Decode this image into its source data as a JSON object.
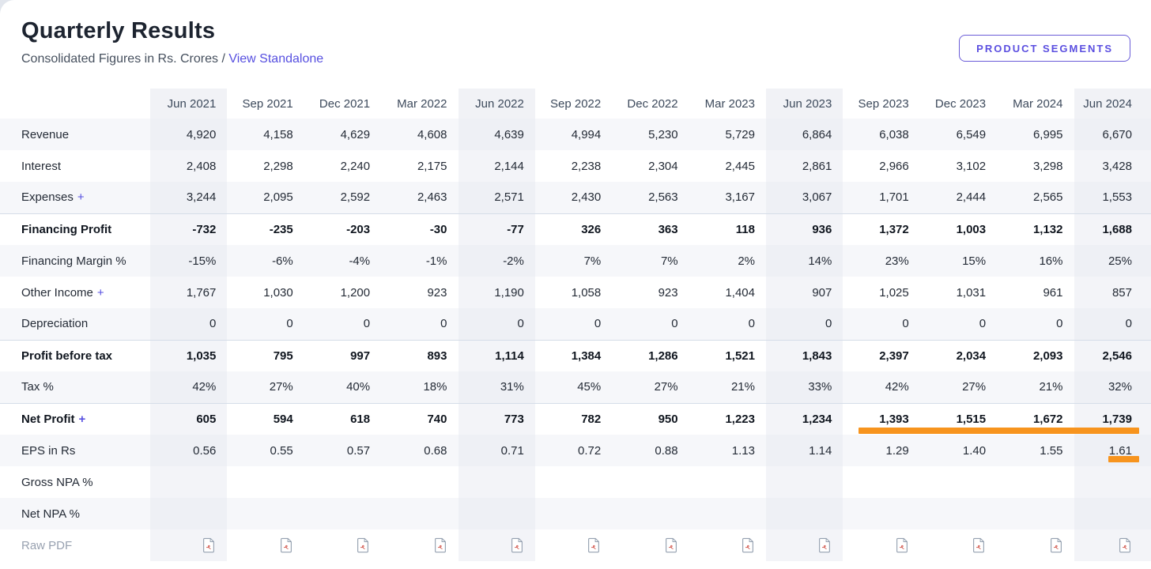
{
  "header": {
    "title": "Quarterly Results",
    "subtitle_prefix": "Consolidated Figures in Rs. Crores /",
    "link_label": "View Standalone",
    "button_label": "PRODUCT SEGMENTS"
  },
  "colors": {
    "accent_purple": "#564fe0",
    "highlight_marker": "#f7941e"
  },
  "table": {
    "columns": [
      "Jun 2021",
      "Sep 2021",
      "Dec 2021",
      "Mar 2022",
      "Jun 2022",
      "Sep 2022",
      "Dec 2022",
      "Mar 2023",
      "Jun 2023",
      "Sep 2023",
      "Dec 2023",
      "Mar 2024",
      "Jun 2024"
    ],
    "highlighted_columns": [
      0,
      4,
      8,
      12
    ],
    "rows": [
      {
        "label": "Revenue",
        "values": [
          "4,920",
          "4,158",
          "4,629",
          "4,608",
          "4,639",
          "4,994",
          "5,230",
          "5,729",
          "6,864",
          "6,038",
          "6,549",
          "6,995",
          "6,670"
        ]
      },
      {
        "label": "Interest",
        "values": [
          "2,408",
          "2,298",
          "2,240",
          "2,175",
          "2,144",
          "2,238",
          "2,304",
          "2,445",
          "2,861",
          "2,966",
          "3,102",
          "3,298",
          "3,428"
        ]
      },
      {
        "label": "Expenses",
        "expandable": true,
        "values": [
          "3,244",
          "2,095",
          "2,592",
          "2,463",
          "2,571",
          "2,430",
          "2,563",
          "3,167",
          "3,067",
          "1,701",
          "2,444",
          "2,565",
          "1,553"
        ]
      },
      {
        "label": "Financing Profit",
        "bold": true,
        "values": [
          "-732",
          "-235",
          "-203",
          "-30",
          "-77",
          "326",
          "363",
          "118",
          "936",
          "1,372",
          "1,003",
          "1,132",
          "1,688"
        ]
      },
      {
        "label": "Financing Margin %",
        "values": [
          "-15%",
          "-6%",
          "-4%",
          "-1%",
          "-2%",
          "7%",
          "7%",
          "2%",
          "14%",
          "23%",
          "15%",
          "16%",
          "25%"
        ]
      },
      {
        "label": "Other Income",
        "expandable": true,
        "values": [
          "1,767",
          "1,030",
          "1,200",
          "923",
          "1,190",
          "1,058",
          "923",
          "1,404",
          "907",
          "1,025",
          "1,031",
          "961",
          "857"
        ]
      },
      {
        "label": "Depreciation",
        "values": [
          "0",
          "0",
          "0",
          "0",
          "0",
          "0",
          "0",
          "0",
          "0",
          "0",
          "0",
          "0",
          "0"
        ]
      },
      {
        "label": "Profit before tax",
        "bold": true,
        "values": [
          "1,035",
          "795",
          "997",
          "893",
          "1,114",
          "1,384",
          "1,286",
          "1,521",
          "1,843",
          "2,397",
          "2,034",
          "2,093",
          "2,546"
        ]
      },
      {
        "label": "Tax %",
        "values": [
          "42%",
          "27%",
          "40%",
          "18%",
          "31%",
          "45%",
          "27%",
          "21%",
          "33%",
          "42%",
          "27%",
          "21%",
          "32%"
        ]
      },
      {
        "label": "Net Profit",
        "expandable": true,
        "bold": true,
        "values": [
          "605",
          "594",
          "618",
          "740",
          "773",
          "782",
          "950",
          "1,223",
          "1,234",
          "1,393",
          "1,515",
          "1,672",
          "1,739"
        ]
      },
      {
        "label": "EPS in Rs",
        "values": [
          "0.56",
          "0.55",
          "0.57",
          "0.68",
          "0.71",
          "0.72",
          "0.88",
          "1.13",
          "1.14",
          "1.29",
          "1.40",
          "1.55",
          "1.61"
        ]
      },
      {
        "label": "Gross NPA %",
        "values": [
          "",
          "",
          "",
          "",
          "",
          "",
          "",
          "",
          "",
          "",
          "",
          "",
          ""
        ]
      },
      {
        "label": "Net NPA %",
        "values": [
          "",
          "",
          "",
          "",
          "",
          "",
          "",
          "",
          "",
          "",
          "",
          "",
          ""
        ]
      },
      {
        "label": "Raw PDF",
        "muted": true,
        "type": "pdf"
      }
    ]
  }
}
